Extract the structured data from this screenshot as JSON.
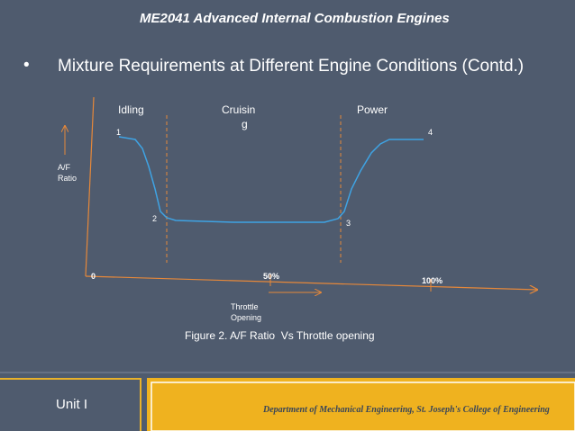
{
  "header": {
    "title": "ME2041 Advanced Internal Combustion Engines"
  },
  "bullet": "Mixture Requirements at Different Engine Conditions (Contd.)",
  "diagram": {
    "regions": [
      "Idling",
      [
        "Cruisin",
        "g"
      ],
      "Power"
    ],
    "points": [
      "1",
      "2",
      "3",
      "4"
    ],
    "y_label": "A/F Ratio",
    "x_ticks": [
      "0",
      "50%",
      "100%"
    ],
    "x_label": "Throttle Opening"
  },
  "caption": "Figure 2. A/F Ratio  Vs Throttle opening",
  "footer": {
    "unit": "Unit I",
    "department": "Department of Mechanical Engineering, St. Joseph's College of Engineering"
  }
}
